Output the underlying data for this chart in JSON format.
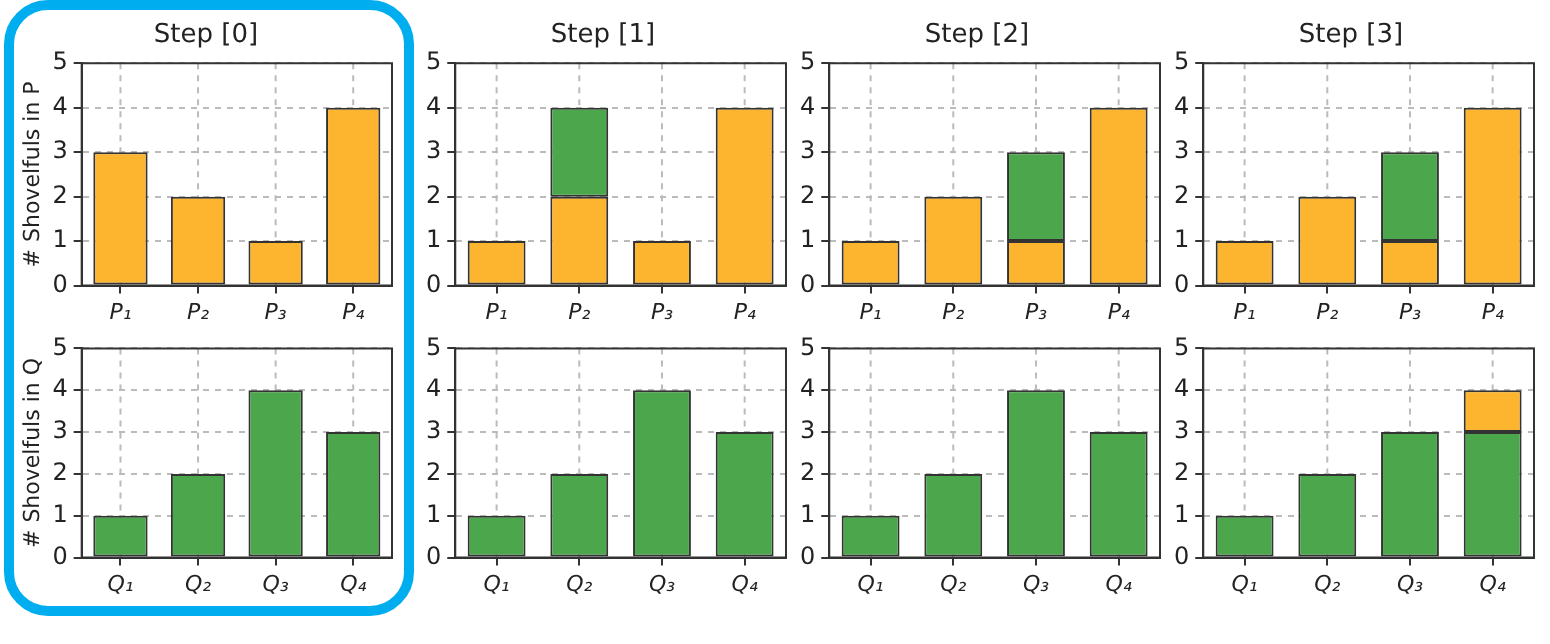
{
  "chart_data": [
    {
      "type": "bar",
      "title": "Step [0]",
      "ylabel": "# Shovelfuls in P",
      "categories": [
        "P₁",
        "P₂",
        "P₃",
        "P₄"
      ],
      "stacked": true,
      "ylim": [
        0,
        5
      ],
      "yticks": [
        0,
        1,
        2,
        3,
        4,
        5
      ],
      "grid": true,
      "series": [
        {
          "color": "#fdb42f",
          "values": [
            3,
            2,
            1,
            4
          ]
        }
      ]
    },
    {
      "type": "bar",
      "title": "Step [1]",
      "categories": [
        "P₁",
        "P₂",
        "P₃",
        "P₄"
      ],
      "stacked": true,
      "ylim": [
        0,
        5
      ],
      "yticks": [
        0,
        1,
        2,
        3,
        4,
        5
      ],
      "grid": true,
      "series": [
        {
          "color": "#fdb42f",
          "values": [
            1,
            2,
            1,
            4
          ]
        },
        {
          "color": "#4ca64c",
          "values": [
            null,
            2,
            null,
            null
          ]
        }
      ]
    },
    {
      "type": "bar",
      "title": "Step [2]",
      "categories": [
        "P₁",
        "P₂",
        "P₃",
        "P₄"
      ],
      "stacked": true,
      "ylim": [
        0,
        5
      ],
      "yticks": [
        0,
        1,
        2,
        3,
        4,
        5
      ],
      "grid": true,
      "series": [
        {
          "color": "#fdb42f",
          "values": [
            1,
            2,
            1,
            4
          ]
        },
        {
          "color": "#4ca64c",
          "values": [
            null,
            null,
            2,
            null
          ]
        }
      ]
    },
    {
      "type": "bar",
      "title": "Step [3]",
      "categories": [
        "P₁",
        "P₂",
        "P₃",
        "P₄"
      ],
      "stacked": true,
      "ylim": [
        0,
        5
      ],
      "yticks": [
        0,
        1,
        2,
        3,
        4,
        5
      ],
      "grid": true,
      "series": [
        {
          "color": "#fdb42f",
          "values": [
            1,
            2,
            1,
            4
          ]
        },
        {
          "color": "#4ca64c",
          "values": [
            null,
            null,
            2,
            null
          ]
        }
      ]
    },
    {
      "type": "bar",
      "ylabel": "# Shovelfuls in Q",
      "categories": [
        "Q₁",
        "Q₂",
        "Q₃",
        "Q₄"
      ],
      "stacked": true,
      "ylim": [
        0,
        5
      ],
      "yticks": [
        0,
        1,
        2,
        3,
        4,
        5
      ],
      "grid": true,
      "series": [
        {
          "color": "#4ca64c",
          "values": [
            1,
            2,
            4,
            3
          ]
        }
      ]
    },
    {
      "type": "bar",
      "categories": [
        "Q₁",
        "Q₂",
        "Q₃",
        "Q₄"
      ],
      "stacked": true,
      "ylim": [
        0,
        5
      ],
      "yticks": [
        0,
        1,
        2,
        3,
        4,
        5
      ],
      "grid": true,
      "series": [
        {
          "color": "#4ca64c",
          "values": [
            1,
            2,
            4,
            3
          ]
        }
      ]
    },
    {
      "type": "bar",
      "categories": [
        "Q₁",
        "Q₂",
        "Q₃",
        "Q₄"
      ],
      "stacked": true,
      "ylim": [
        0,
        5
      ],
      "yticks": [
        0,
        1,
        2,
        3,
        4,
        5
      ],
      "grid": true,
      "series": [
        {
          "color": "#4ca64c",
          "values": [
            1,
            2,
            4,
            3
          ]
        }
      ]
    },
    {
      "type": "bar",
      "categories": [
        "Q₁",
        "Q₂",
        "Q₃",
        "Q₄"
      ],
      "stacked": true,
      "ylim": [
        0,
        5
      ],
      "yticks": [
        0,
        1,
        2,
        3,
        4,
        5
      ],
      "grid": true,
      "series": [
        {
          "color": "#4ca64c",
          "values": [
            1,
            2,
            3,
            3
          ]
        },
        {
          "color": "#fdb42f",
          "values": [
            null,
            null,
            null,
            1
          ]
        }
      ]
    }
  ]
}
